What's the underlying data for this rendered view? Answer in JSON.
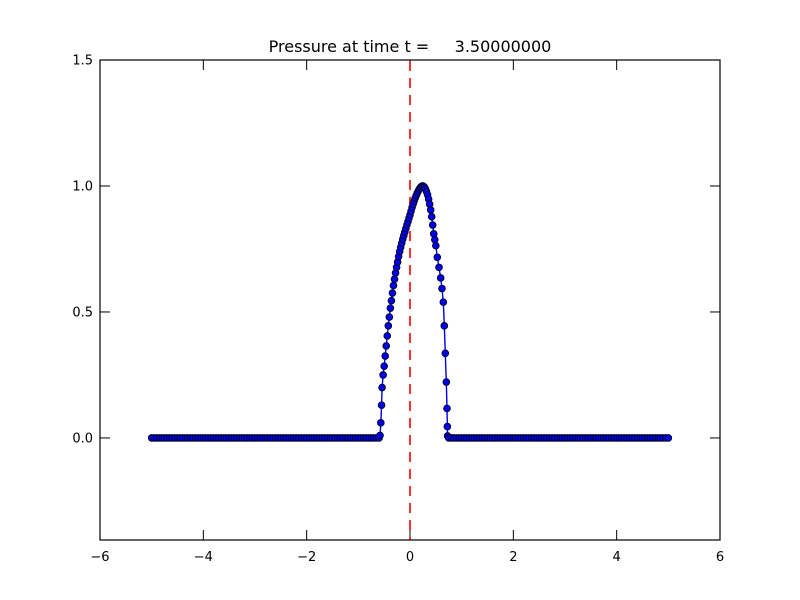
{
  "figure": {
    "background": "#ffffff"
  },
  "chart_data": {
    "type": "line",
    "title": "Pressure at time t =     3.50000000",
    "xlabel": "",
    "ylabel": "",
    "grid": false,
    "legend": null,
    "xlim": [
      -6,
      6
    ],
    "ylim": [
      -0.405,
      1.5
    ],
    "x_ticks": {
      "values": [
        -6,
        -4,
        -2,
        0,
        2,
        4,
        6
      ],
      "labels": [
        "−6",
        "−4",
        "−2",
        "0",
        "2",
        "4",
        "6"
      ]
    },
    "y_ticks": {
      "values": [
        0.0,
        0.5,
        1.0,
        1.5
      ],
      "labels": [
        "0.0",
        "0.5",
        "1.0",
        "1.5"
      ]
    },
    "axes_color": "#000000",
    "tick_length": 10,
    "annotations": [
      {
        "type": "vline",
        "x": 0,
        "color": "#ff0000",
        "line_style": "dashed"
      }
    ],
    "series": [
      {
        "name": "pressure",
        "line_color": "#0000f0",
        "marker": "circle",
        "marker_face": "#0000f0",
        "marker_edge": "#000030",
        "x": [
          -5,
          -4.95,
          -4.9,
          -4.85,
          -4.8,
          -4.75,
          -4.7,
          -4.65,
          -4.6,
          -4.55,
          -4.5,
          -4.45,
          -4.4,
          -4.35,
          -4.3,
          -4.25,
          -4.2,
          -4.15,
          -4.1,
          -4.05,
          -4,
          -3.95,
          -3.9,
          -3.85,
          -3.8,
          -3.75,
          -3.7,
          -3.65,
          -3.6,
          -3.55,
          -3.5,
          -3.45,
          -3.4,
          -3.35,
          -3.3,
          -3.25,
          -3.2,
          -3.15,
          -3.1,
          -3.05,
          -3,
          -2.95,
          -2.9,
          -2.85,
          -2.8,
          -2.75,
          -2.7,
          -2.65,
          -2.6,
          -2.55,
          -2.5,
          -2.45,
          -2.4,
          -2.35,
          -2.3,
          -2.25,
          -2.2,
          -2.15,
          -2.1,
          -2.05,
          -2,
          -1.95,
          -1.9,
          -1.85,
          -1.8,
          -1.75,
          -1.7,
          -1.65,
          -1.6,
          -1.55,
          -1.5,
          -1.45,
          -1.4,
          -1.35,
          -1.3,
          -1.25,
          -1.2,
          -1.15,
          -1.1,
          -1.05,
          -1,
          -0.95,
          -0.9,
          -0.85,
          -0.8,
          -0.75,
          -0.7,
          -0.65,
          -0.6,
          -0.58,
          -0.565,
          -0.55,
          -0.54,
          -0.52,
          -0.5,
          -0.48,
          -0.46,
          -0.44,
          -0.42,
          -0.4,
          -0.38,
          -0.36,
          -0.34,
          -0.32,
          -0.3,
          -0.28,
          -0.26,
          -0.24,
          -0.22,
          -0.2,
          -0.18,
          -0.16,
          -0.14,
          -0.12,
          -0.1,
          -0.08,
          -0.06,
          -0.04,
          -0.02,
          0,
          0.02,
          0.04,
          0.06,
          0.08,
          0.1,
          0.12,
          0.14,
          0.16,
          0.18,
          0.2,
          0.22,
          0.24,
          0.26,
          0.28,
          0.3,
          0.32,
          0.34,
          0.36,
          0.38,
          0.4,
          0.42,
          0.44,
          0.46,
          0.48,
          0.5,
          0.528,
          0.561,
          0.594,
          0.619,
          0.645,
          0.664,
          0.683,
          0.703,
          0.716,
          0.723,
          0.728,
          0.75,
          0.8,
          0.85,
          0.9,
          0.95,
          1,
          1.05,
          1.1,
          1.15,
          1.2,
          1.25,
          1.3,
          1.35,
          1.4,
          1.45,
          1.5,
          1.55,
          1.6,
          1.65,
          1.7,
          1.75,
          1.8,
          1.85,
          1.9,
          1.95,
          2,
          2.05,
          2.1,
          2.15,
          2.2,
          2.25,
          2.3,
          2.35,
          2.4,
          2.45,
          2.5,
          2.55,
          2.6,
          2.65,
          2.7,
          2.75,
          2.8,
          2.85,
          2.9,
          2.95,
          3,
          3.05,
          3.1,
          3.15,
          3.2,
          3.25,
          3.3,
          3.35,
          3.4,
          3.45,
          3.5,
          3.55,
          3.6,
          3.65,
          3.7,
          3.75,
          3.8,
          3.85,
          3.9,
          3.95,
          4,
          4.05,
          4.1,
          4.15,
          4.2,
          4.25,
          4.3,
          4.35,
          4.4,
          4.45,
          4.5,
          4.55,
          4.6,
          4.65,
          4.7,
          4.75,
          4.8,
          4.85,
          4.9,
          4.95,
          5
        ],
        "y": [
          0,
          0,
          0,
          0,
          0,
          0,
          0,
          0,
          0,
          0,
          0,
          0,
          0,
          0,
          0,
          0,
          0,
          0,
          0,
          0,
          0,
          0,
          0,
          0,
          0,
          0,
          0,
          0,
          0,
          0,
          0,
          0,
          0,
          0,
          0,
          0,
          0,
          0,
          0,
          0,
          0,
          0,
          0,
          0,
          0,
          0,
          0,
          0,
          0,
          0,
          0,
          0,
          0,
          0,
          0,
          0,
          0,
          0,
          0,
          0,
          0,
          0,
          0,
          0,
          0,
          0,
          0,
          0,
          0,
          0,
          0,
          0,
          0,
          0,
          0,
          0,
          0,
          0,
          0,
          0,
          0,
          0,
          0,
          0,
          0,
          0,
          0,
          0,
          0,
          0.01,
          0.06,
          0.13,
          0.2,
          0.25,
          0.285,
          0.325,
          0.365,
          0.405,
          0.445,
          0.48,
          0.515,
          0.545,
          0.575,
          0.605,
          0.63,
          0.655,
          0.677,
          0.698,
          0.72,
          0.74,
          0.757,
          0.773,
          0.789,
          0.803,
          0.817,
          0.831,
          0.845,
          0.858,
          0.872,
          0.885,
          0.9,
          0.915,
          0.928,
          0.94,
          0.952,
          0.962,
          0.972,
          0.98,
          0.988,
          0.994,
          0.998,
          1.0,
          0.999,
          0.995,
          0.988,
          0.978,
          0.965,
          0.948,
          0.928,
          0.905,
          0.878,
          0.845,
          0.81,
          0.787,
          0.763,
          0.717,
          0.677,
          0.635,
          0.593,
          0.539,
          0.445,
          0.336,
          0.222,
          0.117,
          0.045,
          0.008,
          0,
          0,
          0,
          0,
          0,
          0,
          0,
          0,
          0,
          0,
          0,
          0,
          0,
          0,
          0,
          0,
          0,
          0,
          0,
          0,
          0,
          0,
          0,
          0,
          0,
          0,
          0,
          0,
          0,
          0,
          0,
          0,
          0,
          0,
          0,
          0,
          0,
          0,
          0,
          0,
          0,
          0,
          0,
          0,
          0,
          0,
          0,
          0,
          0,
          0,
          0,
          0,
          0,
          0,
          0,
          0,
          0,
          0,
          0,
          0,
          0,
          0,
          0,
          0,
          0,
          0,
          0,
          0,
          0,
          0,
          0,
          0,
          0,
          0,
          0,
          0,
          0,
          0,
          0,
          0,
          0,
          0,
          0,
          0,
          0,
          0
        ]
      }
    ]
  }
}
